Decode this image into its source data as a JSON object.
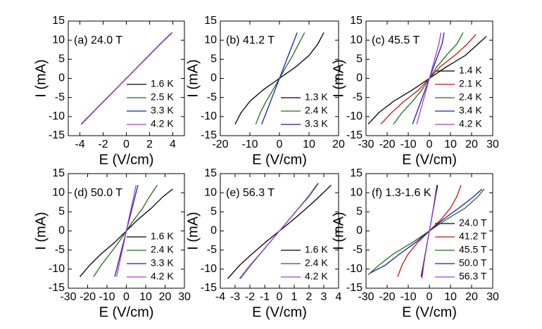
{
  "chart_data": [
    {
      "type": "line",
      "annotation": "(a) 24.0 T",
      "x_label": "E (V/cm)",
      "y_label": "I (mA)",
      "xlim": [
        -5,
        5
      ],
      "ylim": [
        -15,
        15
      ],
      "xticks": [
        -4,
        -2,
        0,
        2,
        4
      ],
      "yticks": [
        -15,
        -10,
        -5,
        0,
        5,
        10,
        15
      ],
      "legend": "lower right",
      "series": [
        {
          "name": "1.6 K",
          "color": "#000000",
          "x": [
            -3.9,
            -2.93,
            -1.95,
            -0.98,
            0,
            0.98,
            1.95,
            2.93,
            3.95
          ],
          "values": [
            -12,
            -9,
            -6,
            -3,
            0,
            3,
            6,
            9,
            12
          ]
        },
        {
          "name": "2.5 K",
          "color": "#1e6e1e",
          "x": [
            -3.88,
            -2.92,
            -1.94,
            -0.97,
            0,
            0.97,
            1.94,
            2.92,
            3.93
          ],
          "values": [
            -12,
            -9,
            -6,
            -3,
            0,
            3,
            6,
            9,
            12
          ]
        },
        {
          "name": "3.3 K",
          "color": "#1c1caa",
          "x": [
            -3.87,
            -2.91,
            -1.94,
            -0.97,
            0,
            0.97,
            1.94,
            2.91,
            3.92
          ],
          "values": [
            -12,
            -9,
            -6,
            -3,
            0,
            3,
            6,
            9,
            12
          ]
        },
        {
          "name": "4.2 K",
          "color": "#a040d8",
          "x": [
            -3.86,
            -2.9,
            -1.93,
            -0.96,
            0,
            0.96,
            1.93,
            2.9,
            3.91
          ],
          "values": [
            -12,
            -9,
            -6,
            -3,
            0,
            3,
            6,
            9,
            12
          ]
        }
      ]
    },
    {
      "type": "line",
      "annotation": "(b) 41.2 T",
      "x_label": "E (V/cm)",
      "y_label": "I (mA)",
      "xlim": [
        -20,
        20
      ],
      "ylim": [
        -15,
        15
      ],
      "xticks": [
        -20,
        -10,
        0,
        10,
        20
      ],
      "yticks": [
        -15,
        -10,
        -5,
        0,
        5,
        10,
        15
      ],
      "legend": "lower right",
      "series": [
        {
          "name": "1.3 K",
          "color": "#000000",
          "x": [
            -15,
            -13,
            -10,
            -5.5,
            0,
            5.5,
            10,
            13,
            15
          ],
          "values": [
            -12,
            -9,
            -6,
            -3,
            0,
            3,
            6,
            9,
            12
          ]
        },
        {
          "name": "2.4 K",
          "color": "#1e6e1e",
          "x": [
            -8,
            -6.5,
            -4.5,
            -2.2,
            0,
            2.2,
            4.5,
            6.5,
            8.5
          ],
          "values": [
            -12,
            -9,
            -6,
            -3,
            0,
            3,
            6,
            9,
            12
          ]
        },
        {
          "name": "3.3 K",
          "color": "#1c1caa",
          "x": [
            -6,
            -4.5,
            -3,
            -1.5,
            0,
            1.5,
            3,
            4.5,
            6
          ],
          "values": [
            -12,
            -9,
            -6,
            -3,
            0,
            3,
            6,
            9,
            12
          ]
        }
      ]
    },
    {
      "type": "line",
      "annotation": "(c) 45.5 T",
      "x_label": "E (V/cm)",
      "y_label": "I (mA)",
      "xlim": [
        -30,
        30
      ],
      "ylim": [
        -15,
        15
      ],
      "xticks": [
        -30,
        -20,
        -10,
        0,
        10,
        20,
        30
      ],
      "yticks": [
        -15,
        -10,
        -5,
        0,
        5,
        10,
        15
      ],
      "legend": "lower right",
      "series": [
        {
          "name": "1.4 K",
          "color": "#000000",
          "x": [
            -29,
            -24,
            -17,
            -8,
            0,
            8,
            17,
            23,
            27
          ],
          "values": [
            -12,
            -9,
            -6,
            -3,
            0,
            3,
            6,
            9,
            11
          ]
        },
        {
          "name": "2.1 K",
          "color": "#cc1111",
          "x": [
            -23,
            -18,
            -12,
            -5,
            0,
            5,
            12,
            18,
            22
          ],
          "values": [
            -12,
            -9,
            -6,
            -3,
            0,
            3,
            6,
            9,
            11.5
          ]
        },
        {
          "name": "2.4 K",
          "color": "#1e6e1e",
          "x": [
            -17,
            -13,
            -8,
            -3.5,
            0,
            3.5,
            8,
            13,
            16
          ],
          "values": [
            -12,
            -9,
            -6,
            -3,
            0,
            3,
            6,
            9,
            12
          ]
        },
        {
          "name": "3.4 K",
          "color": "#1c1caa",
          "x": [
            -8,
            -6,
            -4,
            -2,
            0,
            2,
            4,
            6,
            7
          ],
          "values": [
            -12,
            -9,
            -6,
            -3,
            0,
            3,
            6,
            9,
            12
          ]
        },
        {
          "name": "4.2 K",
          "color": "#a040d8",
          "x": [
            -6,
            -4.5,
            -3,
            -1.5,
            0,
            1.5,
            3,
            4.5,
            5.5
          ],
          "values": [
            -12,
            -9,
            -6,
            -3,
            0,
            3,
            6,
            9,
            12
          ]
        }
      ]
    },
    {
      "type": "line",
      "annotation": "(d) 50.0 T",
      "x_label": "E (V/cm)",
      "y_label": "I (mA)",
      "xlim": [
        -30,
        30
      ],
      "ylim": [
        -15,
        15
      ],
      "xticks": [
        -30,
        -20,
        -10,
        0,
        10,
        20,
        30
      ],
      "yticks": [
        -15,
        -10,
        -5,
        0,
        5,
        10,
        15
      ],
      "legend": "lower right",
      "series": [
        {
          "name": "1.6 K",
          "color": "#000000",
          "x": [
            -24,
            -19,
            -13,
            -6,
            0,
            6,
            13,
            19,
            24
          ],
          "values": [
            -12,
            -9,
            -6,
            -3,
            0,
            3,
            6,
            9,
            11
          ]
        },
        {
          "name": "2.4 K",
          "color": "#1e6e1e",
          "x": [
            -17,
            -13,
            -8.5,
            -4,
            0,
            4,
            8.5,
            12,
            16
          ],
          "values": [
            -12,
            -9,
            -6,
            -3,
            0,
            3,
            6,
            9,
            12
          ]
        },
        {
          "name": "3.3 K",
          "color": "#1c1caa",
          "x": [
            -6,
            -4.5,
            -3,
            -1.5,
            0,
            1.5,
            3,
            4.5,
            6
          ],
          "values": [
            -12,
            -9,
            -6,
            -3,
            0,
            3,
            6,
            9,
            12
          ]
        },
        {
          "name": "4.2 K",
          "color": "#a040d8",
          "x": [
            -5,
            -3.8,
            -2.5,
            -1.2,
            0,
            1.2,
            2.5,
            3.8,
            5
          ],
          "values": [
            -12,
            -9,
            -6,
            -3,
            0,
            3,
            6,
            9,
            12
          ]
        }
      ]
    },
    {
      "type": "line",
      "annotation": "(e) 56.3 T",
      "x_label": "E (V/cm)",
      "y_label": "I (mA)",
      "xlim": [
        -4,
        4
      ],
      "ylim": [
        -15,
        15
      ],
      "xticks": [
        -4,
        -3,
        -2,
        -1,
        0,
        1,
        2,
        3,
        4
      ],
      "yticks": [
        -15,
        -10,
        -5,
        0,
        5,
        10,
        15
      ],
      "legend": "lower right",
      "series": [
        {
          "name": "1.6 K",
          "color": "#000000",
          "x": [
            -3.5,
            -2.7,
            -1.85,
            -0.95,
            0,
            0.95,
            1.85,
            2.7,
            3.5
          ],
          "values": [
            -12.5,
            -9,
            -6,
            -3,
            0,
            3,
            6,
            9,
            12
          ]
        },
        {
          "name": "2.4 K",
          "color": "#1e6e1e",
          "x": [
            -2.65,
            -1.95,
            -1.3,
            -0.65,
            0,
            0.65,
            1.3,
            1.95,
            2.6
          ],
          "values": [
            -12.5,
            -9,
            -6,
            -3,
            0,
            3,
            6,
            9,
            12.5
          ]
        },
        {
          "name": "4.2 K",
          "color": "#a040d8",
          "x": [
            -2.7,
            -2,
            -1.32,
            -0.66,
            0,
            0.66,
            1.32,
            2,
            2.65
          ],
          "values": [
            -12.5,
            -9,
            -6,
            -3,
            0,
            3,
            6,
            9,
            12.5
          ]
        }
      ]
    },
    {
      "type": "line",
      "annotation": "(f) 1.3-1.6 K",
      "x_label": "E (V/cm)",
      "y_label": "I (mA)",
      "xlim": [
        -30,
        30
      ],
      "ylim": [
        -15,
        15
      ],
      "xticks": [
        -30,
        -20,
        -10,
        0,
        10,
        20,
        30
      ],
      "yticks": [
        -15,
        -10,
        -5,
        0,
        5,
        10,
        15
      ],
      "legend": "lower right",
      "series": [
        {
          "name": "24.0 T",
          "color": "#000000",
          "x": [
            -3.9,
            -2.9,
            -1.95,
            -0.98,
            0,
            0.98,
            1.95,
            2.9,
            3.9
          ],
          "values": [
            -12,
            -9,
            -6,
            -3,
            0,
            3,
            6,
            9,
            12
          ]
        },
        {
          "name": "41.2 T",
          "color": "#cc1111",
          "x": [
            -15,
            -13,
            -10,
            -5.5,
            0,
            5.5,
            10,
            13,
            15
          ],
          "values": [
            -12,
            -9,
            -6,
            -3,
            0,
            3,
            6,
            9,
            12
          ]
        },
        {
          "name": "45.5 T",
          "color": "#1e6e1e",
          "x": [
            -29,
            -24,
            -17,
            -8,
            0,
            8,
            17,
            23,
            26
          ],
          "values": [
            -11.5,
            -9,
            -6,
            -3,
            0,
            3,
            6,
            9,
            11
          ]
        },
        {
          "name": "50.0 T",
          "color": "#1c1caa",
          "x": [
            -28,
            -21,
            -14,
            -6.5,
            0,
            6.5,
            14,
            21,
            25
          ],
          "values": [
            -11,
            -9,
            -6,
            -3,
            0,
            3,
            6,
            9,
            11
          ]
        },
        {
          "name": "56.3 T",
          "color": "#a040d8",
          "x": [
            -3.5,
            -2.7,
            -1.85,
            -0.95,
            0,
            0.95,
            1.85,
            2.7,
            3.5
          ],
          "values": [
            -12.5,
            -9,
            -6,
            -3,
            0,
            3,
            6,
            9,
            12
          ]
        }
      ]
    }
  ]
}
